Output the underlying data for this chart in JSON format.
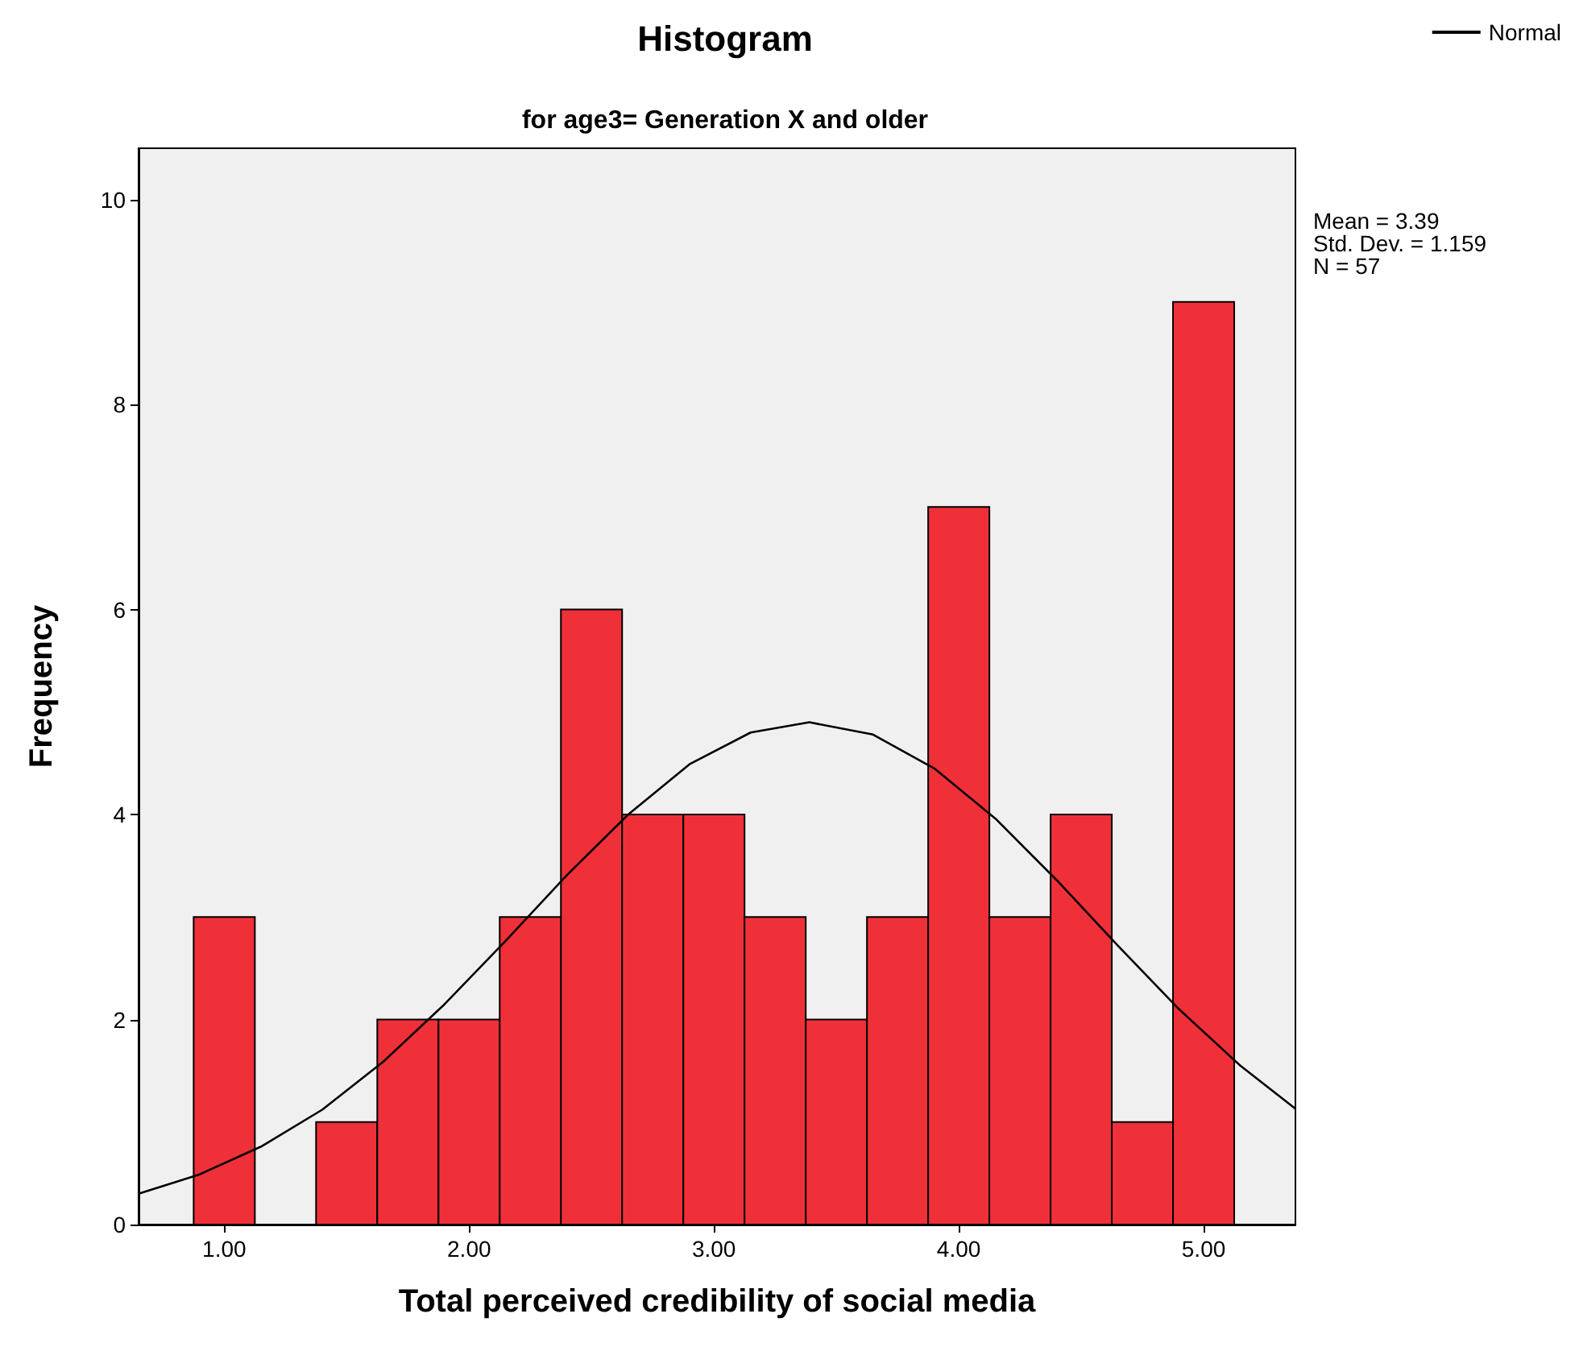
{
  "chart_data": {
    "type": "histogram",
    "title": "Histogram",
    "subtitle": "for age3= Generation X and older",
    "xlabel": "Total perceived credibility of social media",
    "ylabel": "Frequency",
    "bins": [
      0.875,
      1.125,
      1.375,
      1.625,
      1.875,
      2.125,
      2.375,
      2.625,
      2.875,
      3.125,
      3.375,
      3.625,
      3.875,
      4.125,
      4.375,
      4.625,
      4.875,
      5.125
    ],
    "values": [
      3,
      0,
      1,
      2,
      2,
      3,
      6,
      4,
      4,
      3,
      2,
      3,
      7,
      3,
      4,
      1,
      9
    ],
    "color": "#ef3038",
    "series": [
      {
        "type": "line",
        "name": "Normal",
        "color": "#000000",
        "x": [
          0.65,
          0.9,
          1.15,
          1.4,
          1.65,
          1.9,
          2.15,
          2.4,
          2.65,
          2.9,
          3.15,
          3.39,
          3.65,
          3.9,
          4.15,
          4.4,
          4.65,
          4.9,
          5.15,
          5.375
        ],
        "values": [
          0.3,
          0.49,
          0.76,
          1.12,
          1.59,
          2.15,
          2.77,
          3.41,
          4.0,
          4.49,
          4.8,
          4.9,
          4.78,
          4.45,
          3.96,
          3.36,
          2.72,
          2.1,
          1.55,
          1.13
        ]
      }
    ],
    "xlim": [
      0.65,
      5.375
    ],
    "xticks": [
      {
        "value": 1,
        "label": "1.00"
      },
      {
        "value": 2,
        "label": "2.00"
      },
      {
        "value": 3,
        "label": "3.00"
      },
      {
        "value": 4,
        "label": "4.00"
      },
      {
        "value": 5,
        "label": "5.00"
      }
    ],
    "ylim": [
      0,
      10.5
    ],
    "yticks": [
      0,
      2,
      4,
      6,
      8,
      10
    ],
    "annotations": [
      "Mean = 3.39",
      "Std. Dev. = 1.159",
      "N = 57"
    ],
    "legend": "top right",
    "marker": "none",
    "line_style": "solid",
    "grid": false
  }
}
